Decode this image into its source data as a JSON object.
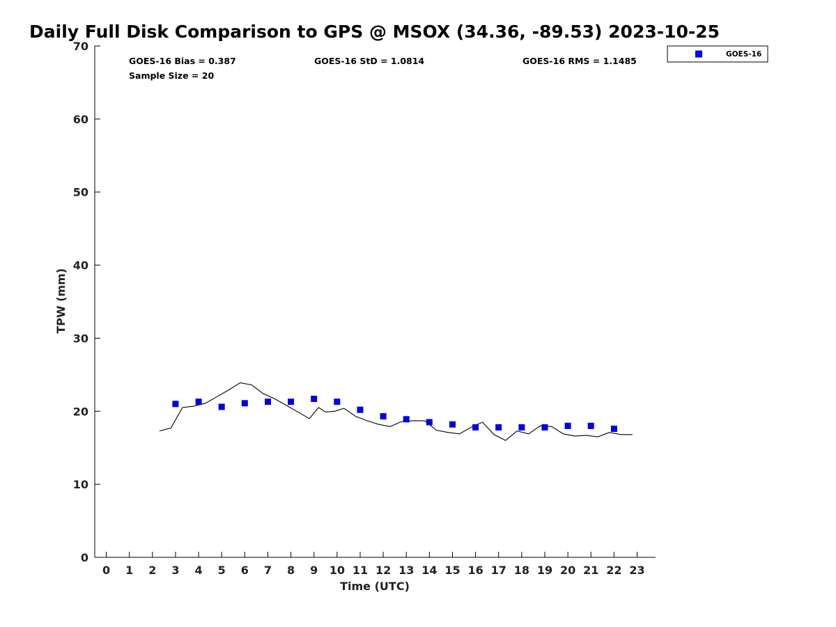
{
  "chart_data": {
    "type": "scatter",
    "title": "Daily Full Disk Comparison to GPS @ MSOX (34.36, -89.53) 2023-10-25",
    "xlabel": "Time (UTC)",
    "ylabel": "TPW (mm)",
    "xlim": [
      -0.5,
      23.8
    ],
    "ylim": [
      0,
      70
    ],
    "x_ticks": [
      "0",
      "1",
      "2",
      "3",
      "4",
      "5",
      "6",
      "7",
      "8",
      "9",
      "10",
      "11",
      "12",
      "13",
      "14",
      "15",
      "16",
      "17",
      "18",
      "19",
      "20",
      "21",
      "22",
      "23"
    ],
    "y_ticks": [
      "0",
      "10",
      "20",
      "30",
      "40",
      "50",
      "60",
      "70"
    ],
    "grid": false,
    "legend_position": "top-right, outside plot",
    "stats": {
      "bias": "GOES-16 Bias = 0.387",
      "std": "GOES-16 StD = 1.0814",
      "rms": "GOES-16 RMS = 1.1485",
      "sample": "Sample Size = 20"
    },
    "series": [
      {
        "name": "GOES-16",
        "style": "square markers",
        "color": "#0000e0",
        "x": [
          3,
          4,
          5,
          6,
          7,
          8,
          9,
          10,
          11,
          12,
          13,
          14,
          15,
          16,
          17,
          18,
          19,
          20,
          21,
          22
        ],
        "y": [
          21.0,
          21.3,
          20.6,
          21.1,
          21.3,
          21.3,
          21.7,
          21.3,
          20.2,
          19.3,
          18.9,
          18.5,
          18.2,
          17.8,
          17.8,
          17.8,
          17.8,
          18.0,
          18.0,
          17.6
        ]
      },
      {
        "name": "",
        "style": "line (GPS)",
        "color": "#000000",
        "x": [
          2.3,
          2.8,
          3.3,
          3.8,
          4.3,
          4.8,
          5.3,
          5.8,
          6.3,
          6.8,
          7.3,
          7.8,
          8.3,
          8.8,
          9.2,
          9.5,
          9.9,
          10.3,
          10.8,
          11.3,
          11.8,
          12.3,
          12.8,
          13.3,
          13.8,
          14.3,
          14.8,
          15.3,
          15.8,
          16.3,
          16.8,
          17.3,
          17.8,
          18.3,
          18.8,
          19.3,
          19.8,
          20.3,
          20.8,
          21.3,
          21.8,
          22.3,
          22.8
        ],
        "y": [
          17.3,
          17.7,
          20.5,
          20.7,
          21.1,
          22.0,
          22.9,
          23.9,
          23.6,
          22.4,
          21.7,
          20.8,
          19.9,
          19.0,
          20.5,
          19.9,
          20.0,
          20.4,
          19.3,
          18.7,
          18.2,
          17.9,
          18.6,
          18.7,
          18.7,
          17.4,
          17.1,
          16.9,
          17.8,
          18.5,
          16.8,
          16.0,
          17.3,
          16.9,
          18.0,
          17.9,
          16.9,
          16.6,
          16.7,
          16.5,
          17.1,
          16.8,
          16.8
        ]
      }
    ]
  },
  "legend": {
    "label": "GOES-16"
  }
}
